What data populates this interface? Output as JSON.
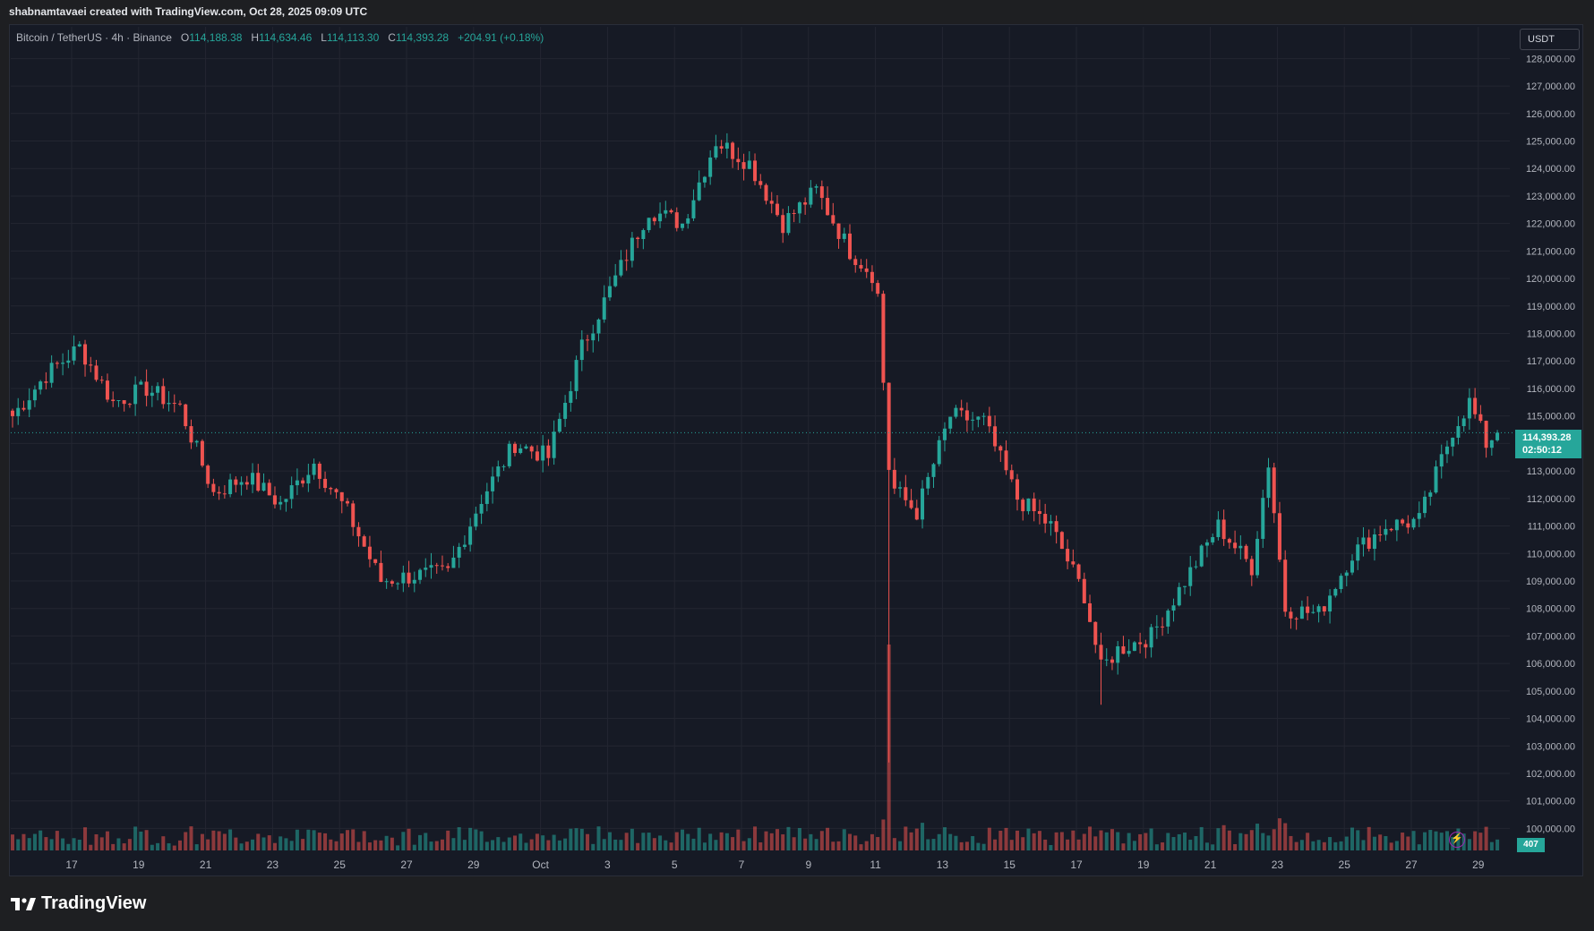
{
  "caption": "shabnamtavaei created with TradingView.com, Oct 28, 2025 09:09 UTC",
  "legend": {
    "symbol": "Bitcoin / TetherUS · 4h · Binance",
    "open_label": "O",
    "open": "114,188.38",
    "high_label": "H",
    "high": "114,634.46",
    "low_label": "L",
    "low": "114,113.30",
    "close_label": "C",
    "close": "114,393.28",
    "change": "+204.91 (+0.18%)"
  },
  "currency_button": "USDT",
  "last_price": {
    "price": "114,393.28",
    "countdown": "02:50:12"
  },
  "volume_label": "407",
  "brand": "TradingView",
  "colors": {
    "up": "#26a69a",
    "down": "#ef5350",
    "background": "#161a25",
    "grid": "#232631",
    "accent": "#9c27b0"
  },
  "chart_data": {
    "type": "candlestick",
    "title": "Bitcoin / TetherUS · 4h · Binance",
    "ylim": [
      99200,
      128500
    ],
    "yticks": [
      "128,000.00",
      "127,000.00",
      "126,000.00",
      "125,000.00",
      "124,000.00",
      "123,000.00",
      "122,000.00",
      "121,000.00",
      "120,000.00",
      "119,000.00",
      "118,000.00",
      "117,000.00",
      "116,000.00",
      "115,000.00",
      "114,000.00",
      "113,000.00",
      "112,000.00",
      "111,000.00",
      "110,000.00",
      "109,000.00",
      "108,000.00",
      "107,000.00",
      "106,000.00",
      "105,000.00",
      "104,000.00",
      "103,000.00",
      "102,000.00",
      "101,000.00",
      "100,000.00"
    ],
    "xticks": [
      "17",
      "19",
      "21",
      "23",
      "25",
      "27",
      "29",
      "Oct",
      "3",
      "5",
      "7",
      "9",
      "11",
      "13",
      "15",
      "17",
      "19",
      "21",
      "23",
      "25",
      "27",
      "29"
    ],
    "grid": true,
    "anchors": [
      {
        "day": 0,
        "close": 115000
      },
      {
        "day": 1,
        "close": 116500
      },
      {
        "day": 2,
        "close": 117500
      },
      {
        "day": 3,
        "close": 115500
      },
      {
        "day": 4,
        "close": 116000
      },
      {
        "day": 5,
        "close": 115300
      },
      {
        "day": 6,
        "close": 112200
      },
      {
        "day": 7,
        "close": 112800
      },
      {
        "day": 8,
        "close": 111800
      },
      {
        "day": 9,
        "close": 113300
      },
      {
        "day": 10,
        "close": 111500
      },
      {
        "day": 11,
        "close": 109000
      },
      {
        "day": 12,
        "close": 109200
      },
      {
        "day": 13,
        "close": 109300
      },
      {
        "day": 14,
        "close": 112000
      },
      {
        "day": 15,
        "close": 114000
      },
      {
        "day": 16,
        "close": 113500
      },
      {
        "day": 17,
        "close": 117500
      },
      {
        "day": 18,
        "close": 120000
      },
      {
        "day": 19,
        "close": 122500
      },
      {
        "day": 20,
        "close": 122000
      },
      {
        "day": 21,
        "close": 125000
      },
      {
        "day": 22,
        "close": 124200
      },
      {
        "day": 23,
        "close": 122000
      },
      {
        "day": 24,
        "close": 123200
      },
      {
        "day": 25,
        "close": 121000
      },
      {
        "day": 25.8,
        "close": 120000
      },
      {
        "day": 26.2,
        "close": 112500
      },
      {
        "day": 27,
        "close": 111500
      },
      {
        "day": 28,
        "close": 115000
      },
      {
        "day": 29,
        "close": 114800
      },
      {
        "day": 30,
        "close": 112000
      },
      {
        "day": 31,
        "close": 111000
      },
      {
        "day": 32,
        "close": 108500
      },
      {
        "day": 32.5,
        "close": 105800
      },
      {
        "day": 33,
        "close": 106500
      },
      {
        "day": 34,
        "close": 107000
      },
      {
        "day": 35,
        "close": 109000
      },
      {
        "day": 36,
        "close": 111000
      },
      {
        "day": 37,
        "close": 109500
      },
      {
        "day": 37.5,
        "close": 113300
      },
      {
        "day": 38,
        "close": 108000
      },
      {
        "day": 39,
        "close": 107800
      },
      {
        "day": 40,
        "close": 110000
      },
      {
        "day": 41,
        "close": 111000
      },
      {
        "day": 42,
        "close": 111200
      },
      {
        "day": 43,
        "close": 114500
      },
      {
        "day": 43.5,
        "close": 115500
      },
      {
        "day": 44,
        "close": 114000
      },
      {
        "day": 44.3,
        "close": 114393
      }
    ]
  }
}
